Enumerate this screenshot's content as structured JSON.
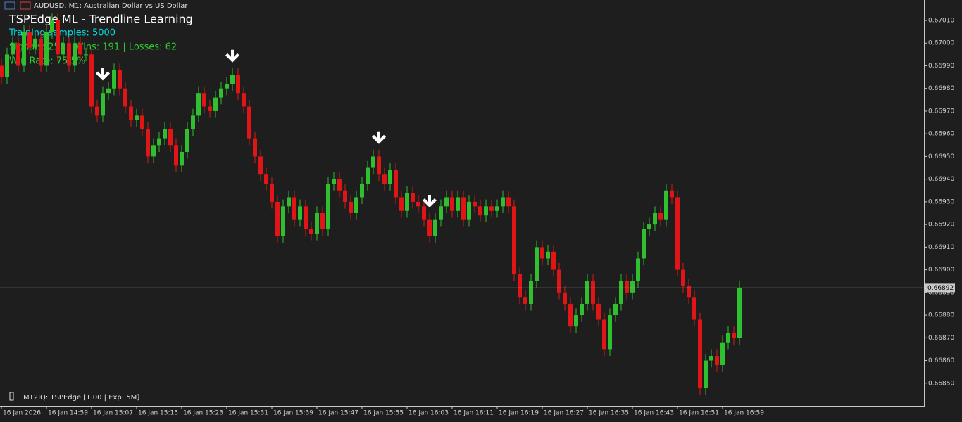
{
  "chart_data": {
    "type": "candlestick",
    "window_title": "AUDUSD, M1:  Australian Dollar vs US Dollar",
    "title": "TSPEdge ML - Trendline Learning",
    "annotations": [
      "Training samples: 5000",
      "Signals: 253 | Wins: 191 | Losses: 62",
      "Win Rate: 75.5%"
    ],
    "footer": "MT2IQ: TSPEdge [1.00 | Exp: 5M]",
    "up_color": "#2fbf2f",
    "down_color": "#e01515",
    "categories": [
      "16 Jan 2026",
      null,
      null,
      null,
      null,
      null,
      null,
      null,
      "16 Jan 14:59",
      null,
      null,
      null,
      null,
      null,
      null,
      null,
      "16 Jan 15:07",
      null,
      null,
      null,
      null,
      null,
      null,
      null,
      "16 Jan 15:15",
      null,
      null,
      null,
      null,
      null,
      null,
      null,
      "16 Jan 15:23",
      null,
      null,
      null,
      null,
      null,
      null,
      null,
      "16 Jan 15:31",
      null,
      null,
      null,
      null,
      null,
      null,
      null,
      "16 Jan 15:39",
      null,
      null,
      null,
      null,
      null,
      null,
      null,
      "16 Jan 15:47",
      null,
      null,
      null,
      null,
      null,
      null,
      null,
      "16 Jan 15:55",
      null,
      null,
      null,
      null,
      null,
      null,
      null,
      "16 Jan 16:03",
      null,
      null,
      null,
      null,
      null,
      null,
      null,
      "16 Jan 16:11",
      null,
      null,
      null,
      null,
      null,
      null,
      null,
      "16 Jan 16:19",
      null,
      null,
      null,
      null,
      null,
      null,
      null,
      "16 Jan 16:27",
      null,
      null,
      null,
      null,
      null,
      null,
      null,
      "16 Jan 16:35",
      null,
      null,
      null,
      null,
      null,
      null,
      null,
      "16 Jan 16:43",
      null,
      null,
      null,
      null,
      null,
      null,
      null,
      "16 Jan 16:51",
      null,
      null,
      null,
      null,
      null,
      null,
      null,
      "16 Jan 16:59",
      null,
      null,
      null
    ],
    "open": [
      0.6699,
      0.66985,
      0.66995,
      0.67,
      0.6699,
      0.67005,
      0.66998,
      0.67002,
      0.6699,
      0.67005,
      0.6701,
      0.66995,
      0.67,
      0.6699,
      0.67,
      0.66995,
      0.66995,
      0.66972,
      0.66968,
      0.66978,
      0.6698,
      0.66988,
      0.6698,
      0.66972,
      0.66966,
      0.66968,
      0.66962,
      0.6695,
      0.66955,
      0.66958,
      0.66962,
      0.66955,
      0.66946,
      0.66952,
      0.66962,
      0.66968,
      0.66978,
      0.66972,
      0.6697,
      0.66976,
      0.6698,
      0.66982,
      0.66986,
      0.66978,
      0.66972,
      0.66958,
      0.6695,
      0.66942,
      0.66938,
      0.6693,
      0.66915,
      0.66928,
      0.66932,
      0.66922,
      0.66928,
      0.66918,
      0.66916,
      0.66925,
      0.66918,
      0.66938,
      0.6694,
      0.66935,
      0.6693,
      0.66925,
      0.66932,
      0.66938,
      0.66945,
      0.6695,
      0.66942,
      0.66938,
      0.66944,
      0.66932,
      0.66926,
      0.66934,
      0.6693,
      0.66928,
      0.66922,
      0.66915,
      0.66922,
      0.66928,
      0.66932,
      0.66926,
      0.66932,
      0.66922,
      0.6693,
      0.66928,
      0.66924,
      0.66928,
      0.66926,
      0.66928,
      0.66932,
      0.66928,
      0.66898,
      0.66888,
      0.66885,
      0.66895,
      0.6691,
      0.66905,
      0.66908,
      0.669,
      0.6689,
      0.66885,
      0.66875,
      0.6688,
      0.66885,
      0.66895,
      0.66885,
      0.66878,
      0.66865,
      0.6688,
      0.66885,
      0.66895,
      0.6689,
      0.66895,
      0.66905,
      0.66918,
      0.6692,
      0.66925,
      0.66922,
      0.66935,
      0.66932,
      0.669,
      0.66893,
      0.66888,
      0.66878,
      0.66848,
      0.6686,
      0.66862,
      0.66858,
      0.66868,
      0.66872,
      0.6687
    ],
    "high": [
      0.66993,
      0.66998,
      0.67003,
      0.67003,
      0.67008,
      0.67008,
      0.67005,
      0.67005,
      0.67008,
      0.67013,
      0.67013,
      0.67003,
      0.67003,
      0.67003,
      0.67003,
      0.66998,
      0.66998,
      0.66975,
      0.66981,
      0.66983,
      0.66991,
      0.66991,
      0.66983,
      0.66975,
      0.66971,
      0.66971,
      0.66965,
      0.66958,
      0.66961,
      0.66965,
      0.66965,
      0.66958,
      0.66955,
      0.66965,
      0.66971,
      0.66981,
      0.66981,
      0.66975,
      0.66979,
      0.66983,
      0.66985,
      0.66989,
      0.66989,
      0.66981,
      0.66975,
      0.66961,
      0.66953,
      0.66945,
      0.66941,
      0.66933,
      0.66931,
      0.66935,
      0.66935,
      0.66931,
      0.66931,
      0.66921,
      0.66928,
      0.66928,
      0.66941,
      0.66943,
      0.66943,
      0.66938,
      0.66933,
      0.66935,
      0.66941,
      0.66948,
      0.66953,
      0.66953,
      0.66945,
      0.66947,
      0.66947,
      0.66935,
      0.66937,
      0.66937,
      0.66933,
      0.66931,
      0.66925,
      0.66925,
      0.66931,
      0.66935,
      0.66935,
      0.66935,
      0.66935,
      0.66933,
      0.66933,
      0.66931,
      0.66931,
      0.66931,
      0.66931,
      0.66935,
      0.66935,
      0.66931,
      0.66901,
      0.66891,
      0.66898,
      0.66913,
      0.66913,
      0.66911,
      0.66911,
      0.66903,
      0.66893,
      0.66888,
      0.66883,
      0.66888,
      0.66898,
      0.66898,
      0.66888,
      0.66881,
      0.66883,
      0.66888,
      0.66898,
      0.66898,
      0.66898,
      0.66908,
      0.66921,
      0.66923,
      0.66928,
      0.66928,
      0.66938,
      0.66938,
      0.66935,
      0.66903,
      0.66896,
      0.66891,
      0.66881,
      0.66863,
      0.66865,
      0.66865,
      0.66871,
      0.66875,
      0.66875,
      0.66895
    ],
    "low": [
      0.66982,
      0.66982,
      0.66992,
      0.66987,
      0.66987,
      0.66995,
      0.66995,
      0.66987,
      0.66987,
      0.67002,
      0.66992,
      0.66992,
      0.66987,
      0.66987,
      0.66992,
      0.66992,
      0.66969,
      0.66965,
      0.66965,
      0.66975,
      0.66977,
      0.66977,
      0.66969,
      0.66963,
      0.66963,
      0.66959,
      0.66947,
      0.66947,
      0.66952,
      0.66955,
      0.66952,
      0.66943,
      0.66943,
      0.66949,
      0.66959,
      0.66965,
      0.66969,
      0.66967,
      0.66967,
      0.66973,
      0.66977,
      0.66979,
      0.66975,
      0.66969,
      0.66955,
      0.66947,
      0.66939,
      0.66935,
      0.66927,
      0.66912,
      0.66912,
      0.66925,
      0.66919,
      0.66919,
      0.66915,
      0.66913,
      0.66913,
      0.66915,
      0.66915,
      0.66935,
      0.66932,
      0.66927,
      0.66922,
      0.66922,
      0.66929,
      0.66935,
      0.66942,
      0.66939,
      0.66935,
      0.66935,
      0.66929,
      0.66923,
      0.66923,
      0.66927,
      0.66925,
      0.66919,
      0.66912,
      0.66912,
      0.66919,
      0.66925,
      0.66923,
      0.66923,
      0.66919,
      0.66919,
      0.66925,
      0.66921,
      0.66921,
      0.66923,
      0.66923,
      0.66925,
      0.66925,
      0.66895,
      0.66885,
      0.66882,
      0.66882,
      0.66892,
      0.66902,
      0.66902,
      0.66897,
      0.66887,
      0.66882,
      0.66872,
      0.66872,
      0.66877,
      0.66882,
      0.66882,
      0.66875,
      0.66862,
      0.66862,
      0.66877,
      0.66882,
      0.66887,
      0.66887,
      0.66892,
      0.66902,
      0.66915,
      0.66917,
      0.66919,
      0.66919,
      0.66929,
      0.66897,
      0.6689,
      0.66885,
      0.66875,
      0.66845,
      0.66845,
      0.66857,
      0.66855,
      0.66855,
      0.66865,
      0.66867,
      0.66867
    ],
    "close": [
      0.66985,
      0.66995,
      0.67,
      0.6699,
      0.67005,
      0.66998,
      0.67002,
      0.6699,
      0.67005,
      0.6701,
      0.66995,
      0.67,
      0.6699,
      0.67,
      0.66995,
      0.66995,
      0.66972,
      0.66968,
      0.66978,
      0.6698,
      0.66988,
      0.6698,
      0.66972,
      0.66966,
      0.66968,
      0.66962,
      0.6695,
      0.66955,
      0.66958,
      0.66962,
      0.66955,
      0.66946,
      0.66952,
      0.66962,
      0.66968,
      0.66978,
      0.66972,
      0.6697,
      0.66976,
      0.6698,
      0.66982,
      0.66986,
      0.66978,
      0.66972,
      0.66958,
      0.6695,
      0.66942,
      0.66938,
      0.6693,
      0.66915,
      0.66928,
      0.66932,
      0.66922,
      0.66928,
      0.66918,
      0.66916,
      0.66925,
      0.66918,
      0.66938,
      0.6694,
      0.66935,
      0.6693,
      0.66925,
      0.66932,
      0.66938,
      0.66945,
      0.6695,
      0.66942,
      0.66938,
      0.66944,
      0.66932,
      0.66926,
      0.66934,
      0.6693,
      0.66928,
      0.66922,
      0.66915,
      0.66922,
      0.66928,
      0.66932,
      0.66926,
      0.66932,
      0.66922,
      0.6693,
      0.66928,
      0.66924,
      0.66928,
      0.66926,
      0.66928,
      0.66932,
      0.66928,
      0.66898,
      0.66888,
      0.66885,
      0.66895,
      0.6691,
      0.66905,
      0.66908,
      0.669,
      0.6689,
      0.66885,
      0.66875,
      0.6688,
      0.66885,
      0.66895,
      0.66885,
      0.66878,
      0.66865,
      0.6688,
      0.66885,
      0.66895,
      0.6689,
      0.66895,
      0.66905,
      0.66918,
      0.6692,
      0.66925,
      0.66922,
      0.66935,
      0.66932,
      0.669,
      0.66893,
      0.66888,
      0.66878,
      0.66848,
      0.6686,
      0.66862,
      0.66858,
      0.66868,
      0.66872,
      0.6687,
      0.66892
    ],
    "signals": [
      18,
      41,
      67,
      76
    ],
    "bid": 0.66892,
    "ylim": [
      0.6684,
      0.67019
    ],
    "yticks": [
      {
        "value": 0.6685,
        "label": "0.66850"
      },
      {
        "value": 0.6686,
        "label": "0.66860"
      },
      {
        "value": 0.6687,
        "label": "0.66870"
      },
      {
        "value": 0.6688,
        "label": "0.66880"
      },
      {
        "value": 0.6689,
        "label": "0.66890"
      },
      {
        "value": 0.669,
        "label": "0.66900"
      },
      {
        "value": 0.6691,
        "label": "0.66910"
      },
      {
        "value": 0.6692,
        "label": "0.66920"
      },
      {
        "value": 0.6693,
        "label": "0.66930"
      },
      {
        "value": 0.6694,
        "label": "0.66940"
      },
      {
        "value": 0.6695,
        "label": "0.66950"
      },
      {
        "value": 0.6696,
        "label": "0.66960"
      },
      {
        "value": 0.6697,
        "label": "0.66970"
      },
      {
        "value": 0.6698,
        "label": "0.66980"
      },
      {
        "value": 0.6699,
        "label": "0.66990"
      },
      {
        "value": 0.67,
        "label": "0.67000"
      },
      {
        "value": 0.6701,
        "label": "0.67010"
      }
    ]
  }
}
